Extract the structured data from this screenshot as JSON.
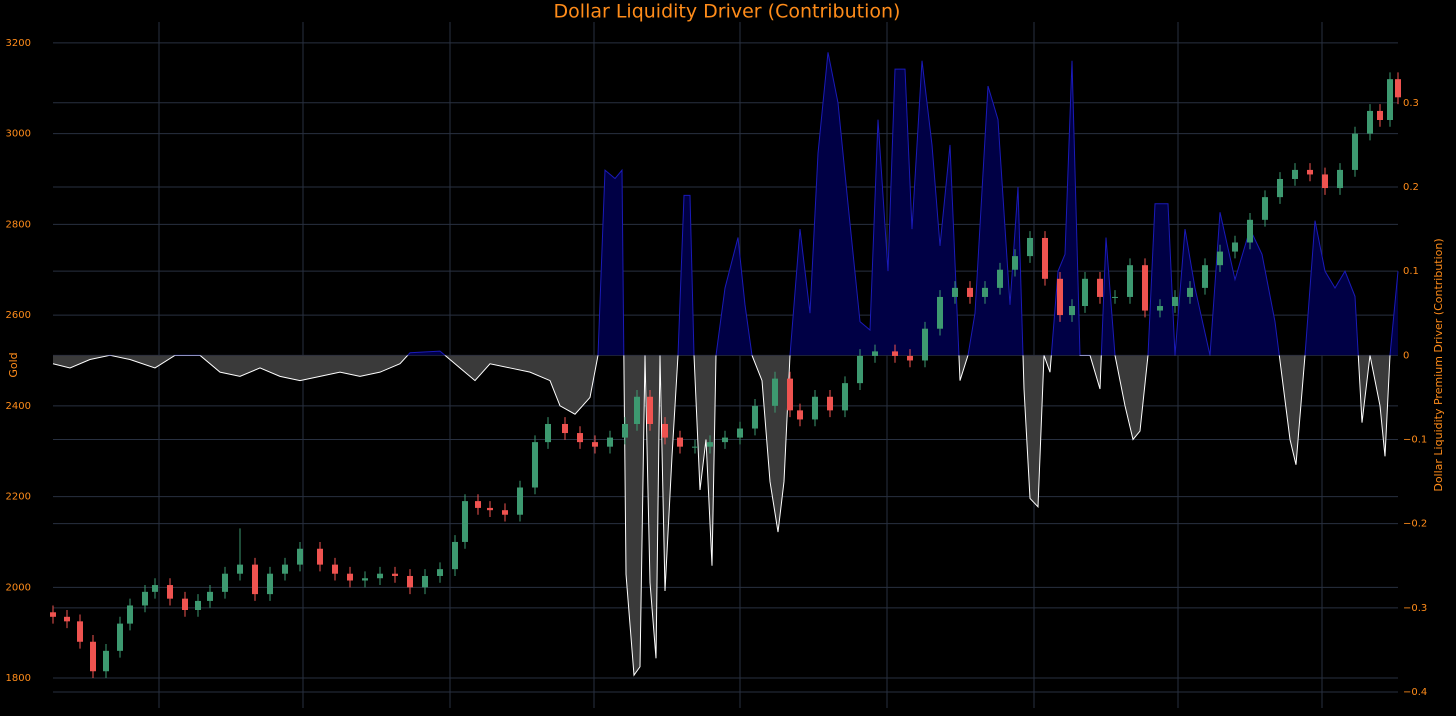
{
  "chart_data": {
    "type": "candlestick",
    "title": "Dollar Liquidity Driver (Contribution)",
    "y_label": "Gold",
    "y2_label": "Dollar Liquidity Premium Driver (Contribution)",
    "increasing_color": "#3d9970",
    "decreasing_color": "#ef5350",
    "grid": true,
    "xlim": [
      53,
      1398
    ],
    "xticks": [
      159,
      303,
      450,
      594,
      740,
      887,
      1034,
      1178,
      1322
    ],
    "ylim": [
      1734,
      3246
    ],
    "yticks": [
      1800,
      2000,
      2200,
      2400,
      2600,
      2800,
      3000,
      3200
    ],
    "y2lim": [
      -0.419,
      0.396
    ],
    "y2ticks": [
      {
        "value": -0.4,
        "label": "−0.4"
      },
      {
        "value": -0.3,
        "label": "−0.3"
      },
      {
        "value": -0.2,
        "label": "−0.2"
      },
      {
        "value": -0.1,
        "label": "−0.1"
      },
      0,
      0.1,
      0.2,
      0.3
    ],
    "x": [
      53,
      67,
      80,
      93,
      106,
      120,
      130,
      145,
      155,
      170,
      185,
      198,
      210,
      225,
      240,
      255,
      270,
      285,
      300,
      320,
      335,
      350,
      365,
      380,
      395,
      410,
      425,
      440,
      455,
      465,
      478,
      490,
      505,
      520,
      535,
      548,
      565,
      580,
      595,
      610,
      625,
      637,
      650,
      665,
      680,
      695,
      710,
      725,
      740,
      755,
      775,
      790,
      800,
      815,
      830,
      845,
      860,
      875,
      895,
      910,
      925,
      940,
      955,
      970,
      985,
      1000,
      1015,
      1030,
      1045,
      1060,
      1072,
      1085,
      1100,
      1115,
      1130,
      1145,
      1160,
      1175,
      1190,
      1205,
      1220,
      1235,
      1250,
      1265,
      1280,
      1295,
      1310,
      1325,
      1340,
      1355,
      1370,
      1380,
      1390,
      1398
    ],
    "open": [
      1945,
      1935,
      1925,
      1880,
      1815,
      1860,
      1920,
      1960,
      1990,
      2005,
      1975,
      1950,
      1970,
      1990,
      2030,
      2050,
      1985,
      2030,
      2050,
      2085,
      2050,
      2030,
      2015,
      2020,
      2030,
      2025,
      2000,
      2025,
      2040,
      2100,
      2190,
      2175,
      2170,
      2160,
      2220,
      2320,
      2360,
      2340,
      2320,
      2310,
      2330,
      2360,
      2420,
      2360,
      2330,
      2310,
      2310,
      2320,
      2330,
      2350,
      2400,
      2460,
      2390,
      2370,
      2420,
      2390,
      2450,
      2510,
      2520,
      2510,
      2500,
      2570,
      2640,
      2660,
      2640,
      2660,
      2700,
      2730,
      2770,
      2680,
      2600,
      2620,
      2680,
      2640,
      2640,
      2710,
      2610,
      2620,
      2640,
      2660,
      2710,
      2740,
      2760,
      2810,
      2860,
      2900,
      2920,
      2910,
      2880,
      2920,
      3000,
      3050,
      3030,
      3120
    ],
    "high": [
      1960,
      1950,
      1940,
      1895,
      1875,
      1935,
      1975,
      2005,
      2020,
      2020,
      1990,
      1985,
      2005,
      2045,
      2130,
      2065,
      2045,
      2065,
      2100,
      2100,
      2065,
      2045,
      2035,
      2045,
      2045,
      2040,
      2040,
      2055,
      2115,
      2205,
      2205,
      2190,
      2185,
      2235,
      2335,
      2375,
      2375,
      2355,
      2335,
      2345,
      2375,
      2435,
      2435,
      2375,
      2345,
      2325,
      2335,
      2345,
      2365,
      2415,
      2475,
      2475,
      2405,
      2435,
      2435,
      2465,
      2525,
      2535,
      2535,
      2525,
      2585,
      2655,
      2675,
      2675,
      2675,
      2715,
      2745,
      2785,
      2785,
      2695,
      2635,
      2695,
      2695,
      2655,
      2725,
      2725,
      2635,
      2655,
      2675,
      2725,
      2755,
      2775,
      2825,
      2875,
      2915,
      2935,
      2935,
      2925,
      2935,
      3015,
      3065,
      3065,
      3135,
      3135
    ],
    "low": [
      1920,
      1910,
      1865,
      1800,
      1800,
      1845,
      1905,
      1945,
      1975,
      1960,
      1935,
      1935,
      1955,
      1975,
      2015,
      1970,
      1970,
      2015,
      2035,
      2035,
      2015,
      2000,
      2000,
      2005,
      2010,
      1985,
      1985,
      2010,
      2025,
      2085,
      2160,
      2155,
      2145,
      2145,
      2205,
      2305,
      2325,
      2305,
      2295,
      2295,
      2315,
      2345,
      2345,
      2315,
      2295,
      2295,
      2295,
      2305,
      2315,
      2335,
      2385,
      2375,
      2355,
      2355,
      2375,
      2375,
      2435,
      2495,
      2495,
      2485,
      2485,
      2555,
      2625,
      2625,
      2625,
      2645,
      2685,
      2715,
      2665,
      2585,
      2585,
      2605,
      2625,
      2625,
      2625,
      2595,
      2595,
      2605,
      2625,
      2645,
      2695,
      2725,
      2745,
      2795,
      2845,
      2885,
      2895,
      2865,
      2865,
      2905,
      2985,
      3015,
      3015,
      3065
    ],
    "close": [
      1935,
      1925,
      1880,
      1815,
      1860,
      1920,
      1960,
      1990,
      2005,
      1975,
      1950,
      1970,
      1990,
      2030,
      2050,
      1985,
      2030,
      2050,
      2085,
      2050,
      2030,
      2015,
      2020,
      2030,
      2025,
      2000,
      2025,
      2040,
      2100,
      2190,
      2175,
      2170,
      2160,
      2220,
      2320,
      2360,
      2340,
      2320,
      2310,
      2330,
      2360,
      2420,
      2360,
      2330,
      2310,
      2310,
      2320,
      2330,
      2350,
      2400,
      2460,
      2390,
      2370,
      2420,
      2390,
      2450,
      2510,
      2520,
      2510,
      2500,
      2570,
      2640,
      2660,
      2640,
      2660,
      2700,
      2730,
      2770,
      2680,
      2600,
      2620,
      2680,
      2640,
      2640,
      2710,
      2610,
      2620,
      2640,
      2660,
      2710,
      2740,
      2760,
      2810,
      2860,
      2900,
      2920,
      2910,
      2880,
      2920,
      3000,
      3050,
      3030,
      3120,
      3080
    ],
    "series": [
      {
        "type": "area",
        "axis": "y2",
        "positive_color": "#1a1ab8",
        "positive_fill": "#000045",
        "negative_color": "#ffffff",
        "negative_fill": "#3a3a3a",
        "x": [
          53,
          70,
          90,
          110,
          130,
          155,
          175,
          200,
          220,
          240,
          260,
          280,
          300,
          320,
          340,
          360,
          380,
          400,
          410,
          440,
          460,
          475,
          490,
          510,
          530,
          550,
          560,
          575,
          590,
          598,
          605,
          615,
          622,
          626,
          634,
          640,
          645,
          650,
          656,
          660,
          665,
          672,
          678,
          684,
          690,
          694,
          700,
          706,
          712,
          716,
          725,
          738,
          745,
          752,
          762,
          770,
          778,
          784,
          790,
          800,
          810,
          818,
          828,
          838,
          848,
          860,
          870,
          878,
          888,
          895,
          905,
          912,
          922,
          932,
          940,
          950,
          960,
          968,
          975,
          988,
          998,
          1010,
          1018,
          1024,
          1030,
          1038,
          1044,
          1050,
          1058,
          1065,
          1072,
          1080,
          1090,
          1100,
          1106,
          1115,
          1125,
          1133,
          1140,
          1148,
          1155,
          1168,
          1175,
          1185,
          1195,
          1210,
          1220,
          1235,
          1250,
          1262,
          1275,
          1290,
          1296,
          1305,
          1315,
          1325,
          1335,
          1345,
          1355,
          1362,
          1370,
          1380,
          1385,
          1390,
          1398
        ],
        "values": [
          -0.01,
          -0.015,
          -0.005,
          0.0,
          -0.005,
          -0.015,
          0.0,
          0.0,
          -0.02,
          -0.025,
          -0.015,
          -0.025,
          -0.03,
          -0.025,
          -0.02,
          -0.025,
          -0.02,
          -0.01,
          0.003,
          0.005,
          -0.015,
          -0.03,
          -0.01,
          -0.015,
          -0.02,
          -0.03,
          -0.06,
          -0.07,
          -0.05,
          0.0,
          0.22,
          0.21,
          0.22,
          -0.26,
          -0.38,
          -0.37,
          0.0,
          -0.27,
          -0.36,
          0.0,
          -0.28,
          -0.12,
          0.0,
          0.19,
          0.19,
          0.0,
          -0.16,
          -0.1,
          -0.25,
          0.0,
          0.08,
          0.14,
          0.06,
          0.0,
          -0.03,
          -0.15,
          -0.21,
          -0.15,
          0.0,
          0.15,
          0.05,
          0.24,
          0.36,
          0.3,
          0.18,
          0.04,
          0.03,
          0.28,
          0.1,
          0.34,
          0.34,
          0.15,
          0.35,
          0.25,
          0.13,
          0.25,
          -0.03,
          0.0,
          0.05,
          0.32,
          0.28,
          0.06,
          0.2,
          -0.04,
          -0.17,
          -0.18,
          0.0,
          -0.02,
          0.1,
          0.12,
          0.35,
          0.0,
          0.0,
          -0.04,
          0.14,
          0.0,
          -0.06,
          -0.1,
          -0.09,
          0.0,
          0.18,
          0.18,
          0.0,
          0.15,
          0.08,
          0.0,
          0.17,
          0.09,
          0.15,
          0.12,
          0.04,
          -0.1,
          -0.13,
          0.0,
          0.16,
          0.1,
          0.08,
          0.1,
          0.07,
          -0.08,
          0.0,
          -0.06,
          -0.12,
          0.0,
          0.1
        ]
      }
    ]
  }
}
